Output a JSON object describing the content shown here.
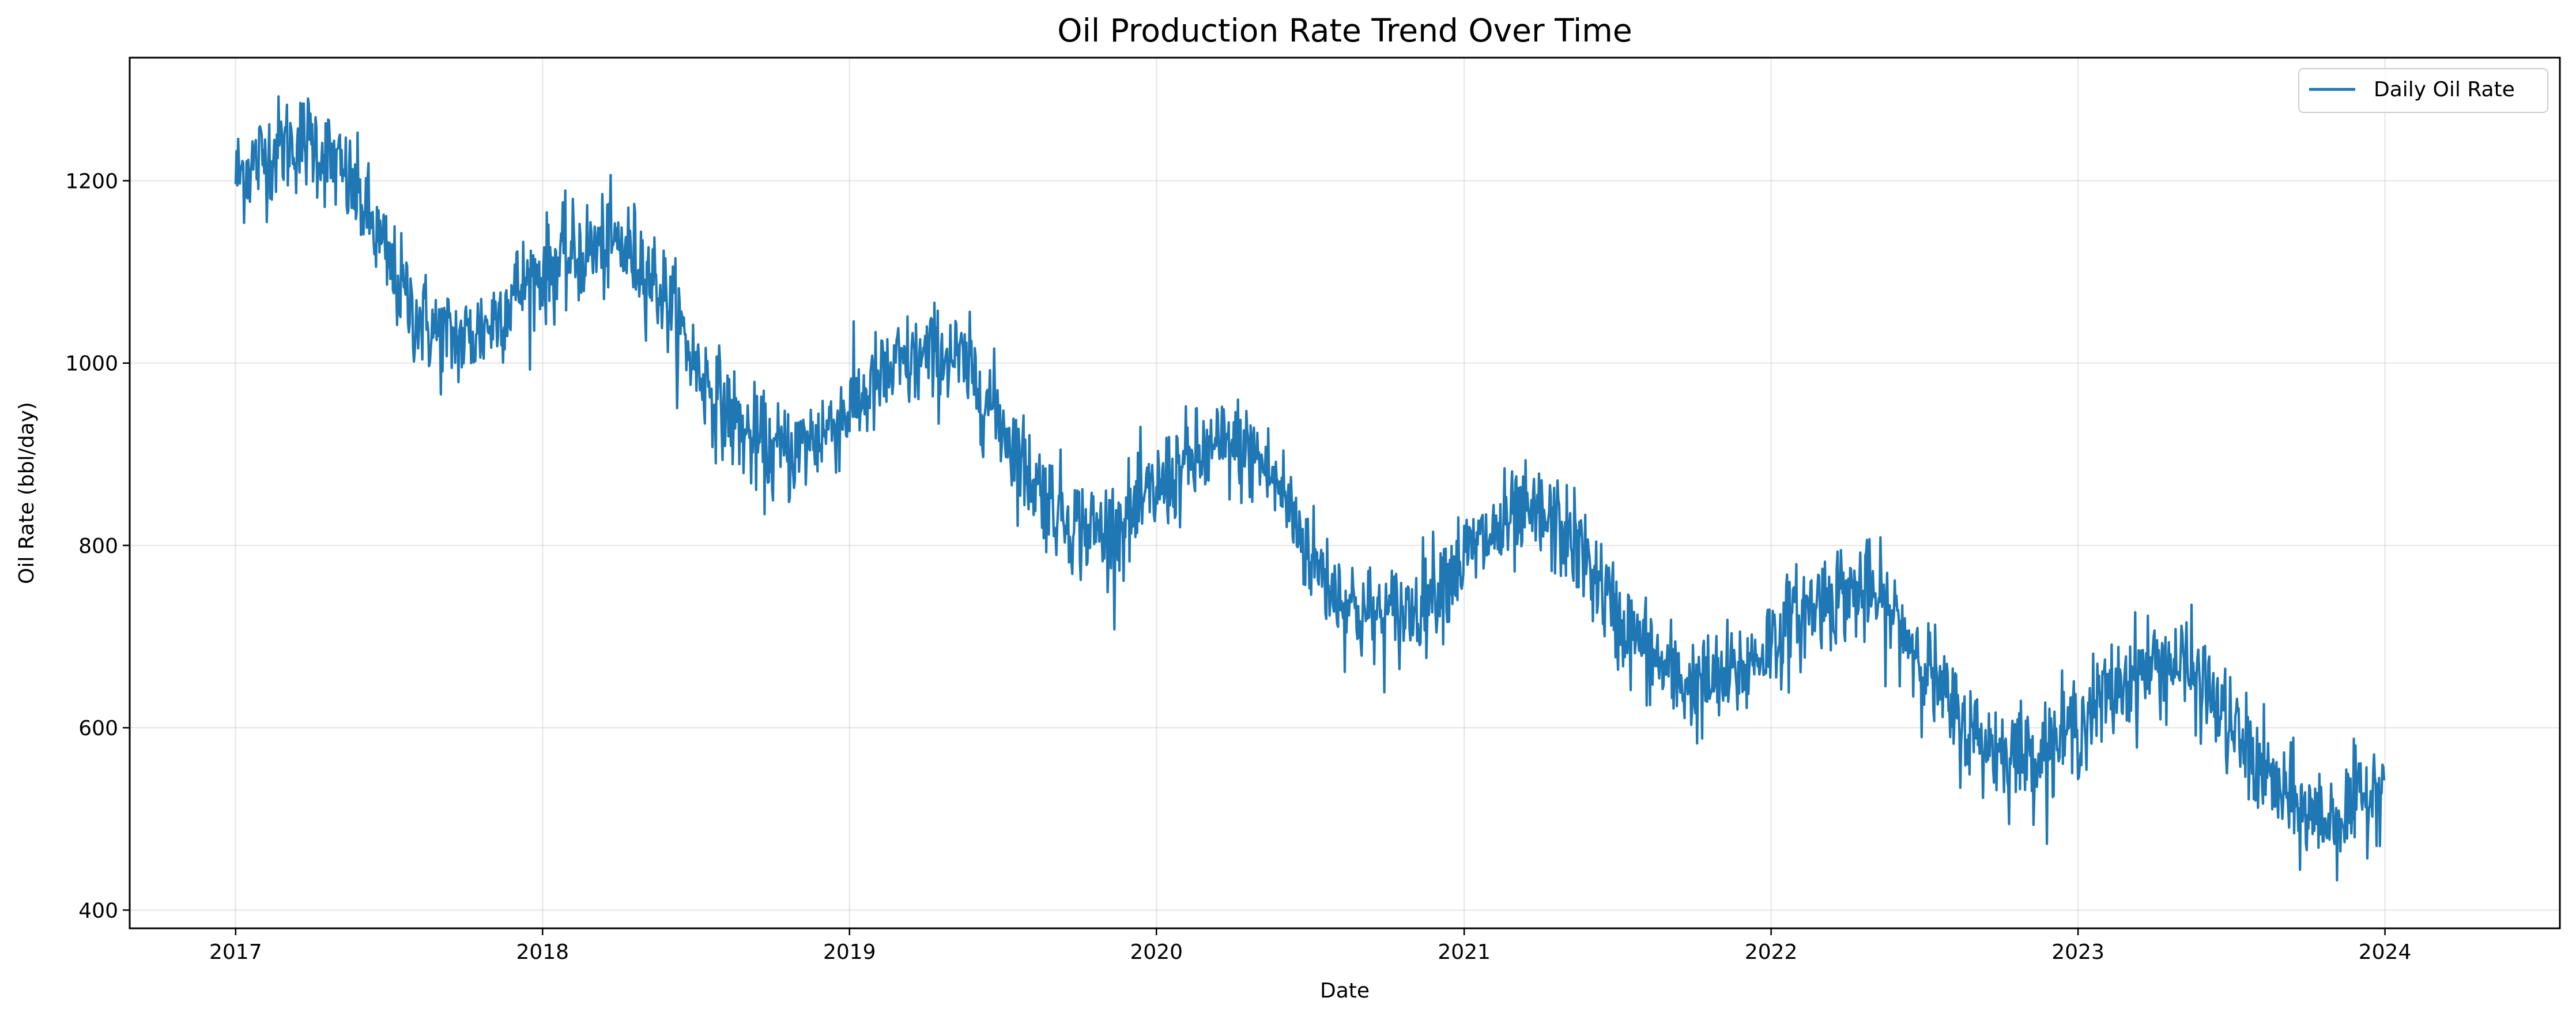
{
  "chart_data": {
    "type": "line",
    "title": "Oil Production Rate Trend Over Time",
    "xlabel": "Date",
    "ylabel": "Oil Rate (bbl/day)",
    "x_type": "date",
    "xlim": [
      "2016-08-28",
      "2024-07-27"
    ],
    "ylim": [
      380,
      1335
    ],
    "xticks": [
      {
        "value": "2017-01-01",
        "label": "2017"
      },
      {
        "value": "2018-01-01",
        "label": "2018"
      },
      {
        "value": "2019-01-01",
        "label": "2019"
      },
      {
        "value": "2020-01-01",
        "label": "2020"
      },
      {
        "value": "2021-01-01",
        "label": "2021"
      },
      {
        "value": "2022-01-01",
        "label": "2022"
      },
      {
        "value": "2023-01-01",
        "label": "2023"
      },
      {
        "value": "2024-01-01",
        "label": "2024"
      }
    ],
    "yticks": [
      400,
      600,
      800,
      1000,
      1200
    ],
    "grid": true,
    "legend_position": "top-right",
    "series": [
      {
        "name": "Daily Oil Rate",
        "color": "#1f77b4",
        "x": [
          "2017-01-01",
          "2017-02-01",
          "2017-03-01",
          "2017-04-01",
          "2017-05-01",
          "2017-06-01",
          "2017-07-01",
          "2017-08-01",
          "2017-09-01",
          "2017-10-01",
          "2017-11-01",
          "2017-12-01",
          "2018-01-01",
          "2018-02-01",
          "2018-03-01",
          "2018-04-01",
          "2018-05-01",
          "2018-06-01",
          "2018-07-01",
          "2018-08-01",
          "2018-09-01",
          "2018-10-01",
          "2018-11-01",
          "2018-12-01",
          "2019-01-01",
          "2019-02-01",
          "2019-03-01",
          "2019-04-01",
          "2019-05-01",
          "2019-06-01",
          "2019-07-01",
          "2019-08-01",
          "2019-09-01",
          "2019-10-01",
          "2019-11-01",
          "2019-12-01",
          "2020-01-01",
          "2020-02-01",
          "2020-03-01",
          "2020-04-01",
          "2020-05-01",
          "2020-06-01",
          "2020-07-01",
          "2020-08-01",
          "2020-09-01",
          "2020-10-01",
          "2020-11-01",
          "2020-12-01",
          "2021-01-01",
          "2021-02-01",
          "2021-03-01",
          "2021-04-01",
          "2021-05-01",
          "2021-06-01",
          "2021-07-01",
          "2021-08-01",
          "2021-09-01",
          "2021-10-01",
          "2021-11-01",
          "2021-12-01",
          "2022-01-01",
          "2022-02-01",
          "2022-03-01",
          "2022-04-01",
          "2022-05-01",
          "2022-06-01",
          "2022-07-01",
          "2022-08-01",
          "2022-09-01",
          "2022-10-01",
          "2022-11-01",
          "2022-12-01",
          "2023-01-01",
          "2023-02-01",
          "2023-03-01",
          "2023-04-01",
          "2023-05-01",
          "2023-06-01",
          "2023-07-01",
          "2023-08-01",
          "2023-09-01",
          "2023-10-01",
          "2023-11-01",
          "2023-12-01",
          "2023-12-31"
        ],
        "values": [
          1205,
          1225,
          1240,
          1245,
          1215,
          1175,
          1110,
          1055,
          1030,
          1025,
          1045,
          1080,
          1100,
          1115,
          1125,
          1130,
          1110,
          1065,
          1000,
          955,
          920,
          900,
          905,
          925,
          950,
          975,
          995,
          1005,
          1010,
          980,
          935,
          880,
          845,
          820,
          815,
          830,
          860,
          885,
          900,
          910,
          895,
          855,
          790,
          750,
          725,
          720,
          730,
          760,
          785,
          810,
          825,
          830,
          815,
          775,
          720,
          690,
          660,
          645,
          650,
          665,
          695,
          720,
          740,
          750,
          745,
          715,
          675,
          620,
          590,
          575,
          570,
          580,
          605,
          630,
          655,
          670,
          670,
          645,
          600,
          560,
          525,
          505,
          500,
          515,
          550
        ],
        "noise": 28
      }
    ]
  }
}
